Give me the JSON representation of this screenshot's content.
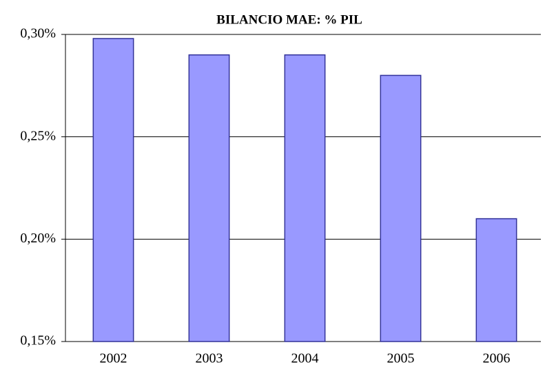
{
  "chart_data": {
    "type": "bar",
    "title": "BILANCIO MAE: % PIL",
    "categories": [
      "2002",
      "2003",
      "2004",
      "2005",
      "2006"
    ],
    "values": [
      0.298,
      0.29,
      0.29,
      0.28,
      0.21
    ],
    "color": "#9999ff",
    "ylim": [
      0.15,
      0.3
    ],
    "yticks": [
      {
        "value": 0.15,
        "label": "0,15%"
      },
      {
        "value": 0.2,
        "label": "0,20%"
      },
      {
        "value": 0.25,
        "label": "0,25%"
      },
      {
        "value": 0.3,
        "label": "0,30%"
      }
    ],
    "grid": true
  }
}
